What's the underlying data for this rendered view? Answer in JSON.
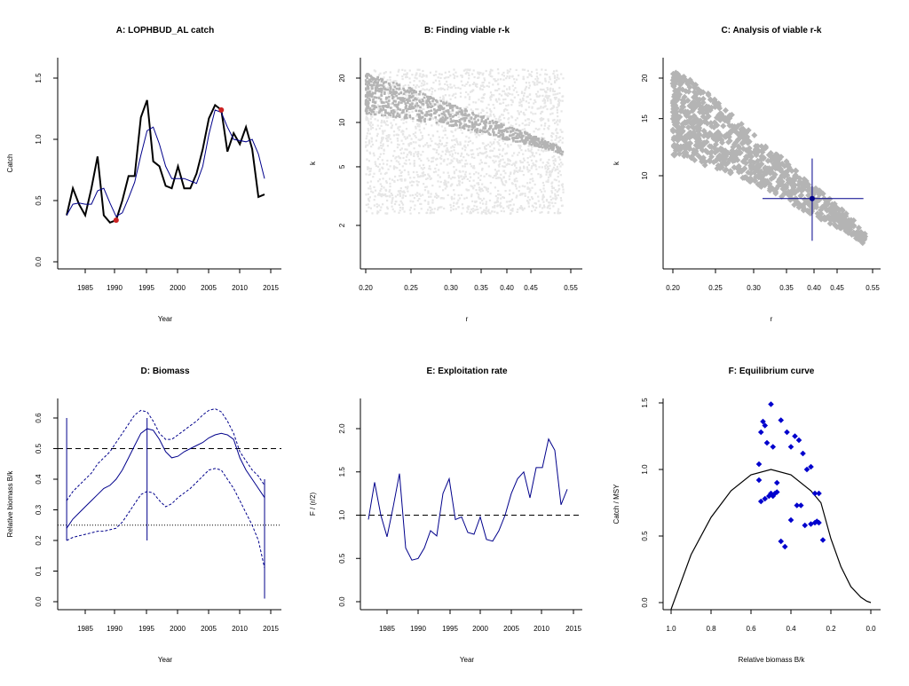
{
  "colors": {
    "blue": "#00008b",
    "point_blue": "#0000cd",
    "red": "#cc2222",
    "grey_dark": "#b4b4b4",
    "grey_light": "#e6e6e6"
  },
  "chart_data": [
    {
      "id": "A",
      "type": "line",
      "title": "A:  LOPHBUD_AL catch",
      "xlabel": "Year",
      "ylabel": "Catch",
      "xlim": [
        1982,
        2014
      ],
      "ylim": [
        0,
        1.6
      ],
      "xticks": [
        "1985",
        "1990",
        "1995",
        "2000",
        "2005",
        "2010",
        "2015"
      ],
      "yticks": [
        "0.0",
        "0.5",
        "1.0",
        "1.5"
      ],
      "x": [
        1982,
        1983,
        1984,
        1985,
        1986,
        1987,
        1988,
        1989,
        1990,
        1991,
        1992,
        1993,
        1994,
        1995,
        1996,
        1997,
        1998,
        1999,
        2000,
        2001,
        2002,
        2003,
        2004,
        2005,
        2006,
        2007,
        2008,
        2009,
        2010,
        2011,
        2012,
        2013,
        2014
      ],
      "series": [
        {
          "name": "Catch",
          "values": [
            0.38,
            0.6,
            0.47,
            0.38,
            0.6,
            0.86,
            0.38,
            0.32,
            0.34,
            0.5,
            0.7,
            0.7,
            1.18,
            1.32,
            0.82,
            0.78,
            0.62,
            0.6,
            0.78,
            0.6,
            0.6,
            0.72,
            0.92,
            1.17,
            1.28,
            1.24,
            0.9,
            1.05,
            0.96,
            1.1,
            0.92,
            0.53,
            0.55
          ]
        },
        {
          "name": "Smoothed catch",
          "values": [
            0.38,
            0.47,
            0.48,
            0.47,
            0.47,
            0.58,
            0.6,
            0.48,
            0.37,
            0.4,
            0.52,
            0.65,
            0.87,
            1.07,
            1.1,
            0.96,
            0.78,
            0.68,
            0.68,
            0.68,
            0.66,
            0.64,
            0.78,
            1.04,
            1.24,
            1.22,
            1.1,
            1.0,
            0.99,
            0.98,
            1.0,
            0.88,
            0.68
          ]
        }
      ],
      "highlight_points": [
        {
          "x": 1990,
          "y": 0.34
        },
        {
          "x": 2007,
          "y": 1.24
        }
      ]
    },
    {
      "id": "B",
      "type": "scatter",
      "title": "B: Finding viable r-k",
      "xlabel": "r",
      "ylabel": "k",
      "xscale": "log",
      "yscale": "log",
      "xlim": [
        0.2,
        0.53
      ],
      "ylim": [
        2.4,
        23
      ],
      "xticks": [
        "0.20",
        "0.25",
        "0.30",
        "0.35",
        "0.40",
        "0.45",
        "0.55"
      ],
      "yticks": [
        "2",
        "5",
        "10",
        "20"
      ],
      "background_cloud": {
        "r_range": [
          0.2,
          0.53
        ],
        "k_range": [
          2.4,
          23
        ],
        "points": 2200
      },
      "viable_band": {
        "upper_edge": [
          [
            0.2,
            21.5
          ],
          [
            0.3,
            13.5
          ],
          [
            0.4,
            9.5
          ],
          [
            0.5,
            7.3
          ],
          [
            0.53,
            6.6
          ]
        ],
        "lower_edge": [
          [
            0.2,
            11.5
          ],
          [
            0.3,
            9.5
          ],
          [
            0.4,
            7.6
          ],
          [
            0.5,
            6.5
          ],
          [
            0.53,
            6.0
          ]
        ],
        "points": 900
      }
    },
    {
      "id": "C",
      "type": "scatter",
      "title": "C: Analysis of viable r-k",
      "xlabel": "r",
      "ylabel": "k",
      "xscale": "log",
      "yscale": "log",
      "xlim": [
        0.2,
        0.53
      ],
      "ylim": [
        5.2,
        22
      ],
      "xticks": [
        "0.20",
        "0.25",
        "0.30",
        "0.35",
        "0.40",
        "0.45",
        "0.55"
      ],
      "yticks": [
        "10",
        "15",
        "20"
      ],
      "viable_band": {
        "upper_edge": [
          [
            0.2,
            21.5
          ],
          [
            0.3,
            13.5
          ],
          [
            0.4,
            9.5
          ],
          [
            0.5,
            7.3
          ],
          [
            0.53,
            6.6
          ]
        ],
        "lower_edge": [
          [
            0.2,
            11.5
          ],
          [
            0.3,
            9.5
          ],
          [
            0.4,
            7.6
          ],
          [
            0.5,
            6.5
          ],
          [
            0.53,
            6.0
          ]
        ],
        "points": 900
      },
      "best_estimate": {
        "r": 0.405,
        "k": 8.5,
        "r_ci": [
          0.315,
          0.525
        ],
        "k_ci": [
          6.3,
          11.3
        ]
      }
    },
    {
      "id": "D",
      "type": "line",
      "title": "D: Biomass",
      "xlabel": "Year",
      "ylabel": "Relative biomass B/k",
      "xlim": [
        1982,
        2014
      ],
      "ylim": [
        0,
        0.62
      ],
      "xticks": [
        "1985",
        "1990",
        "1995",
        "2000",
        "2005",
        "2010",
        "2015"
      ],
      "yticks": [
        "0.0",
        "0.1",
        "0.2",
        "0.3",
        "0.4",
        "0.5",
        "0.6"
      ],
      "x": [
        1982,
        1983,
        1984,
        1985,
        1986,
        1987,
        1988,
        1989,
        1990,
        1991,
        1992,
        1993,
        1994,
        1995,
        1996,
        1997,
        1998,
        1999,
        2000,
        2001,
        2002,
        2003,
        2004,
        2005,
        2006,
        2007,
        2008,
        2009,
        2010,
        2011,
        2012,
        2013,
        2014
      ],
      "series": [
        {
          "name": "Median",
          "style": "solid",
          "values": [
            0.24,
            0.27,
            0.29,
            0.31,
            0.33,
            0.35,
            0.37,
            0.38,
            0.4,
            0.43,
            0.47,
            0.51,
            0.55,
            0.565,
            0.56,
            0.53,
            0.49,
            0.47,
            0.475,
            0.49,
            0.5,
            0.51,
            0.52,
            0.535,
            0.545,
            0.55,
            0.545,
            0.53,
            0.47,
            0.43,
            0.4,
            0.37,
            0.34
          ]
        },
        {
          "name": "Upper",
          "style": "dotted",
          "values": [
            0.33,
            0.36,
            0.38,
            0.4,
            0.42,
            0.45,
            0.47,
            0.49,
            0.52,
            0.55,
            0.58,
            0.61,
            0.625,
            0.62,
            0.59,
            0.55,
            0.53,
            0.53,
            0.545,
            0.56,
            0.575,
            0.59,
            0.61,
            0.625,
            0.63,
            0.62,
            0.59,
            0.55,
            0.49,
            0.46,
            0.43,
            0.41,
            0.38
          ]
        },
        {
          "name": "Lower",
          "style": "dotted",
          "values": [
            0.2,
            0.21,
            0.215,
            0.22,
            0.225,
            0.23,
            0.23,
            0.235,
            0.24,
            0.26,
            0.29,
            0.32,
            0.35,
            0.36,
            0.355,
            0.33,
            0.31,
            0.32,
            0.34,
            0.355,
            0.37,
            0.39,
            0.41,
            0.43,
            0.435,
            0.43,
            0.4,
            0.37,
            0.33,
            0.29,
            0.25,
            0.2,
            0.11
          ]
        }
      ],
      "hlines": [
        {
          "y": 0.5,
          "style": "dashed"
        },
        {
          "y": 0.25,
          "style": "dotted"
        }
      ],
      "vlines": [
        {
          "x": 1982,
          "y_range": [
            0.2,
            0.6
          ]
        },
        {
          "x": 1995,
          "y_range": [
            0.2,
            0.6
          ]
        },
        {
          "x": 2014,
          "y_range": [
            0.01,
            0.4
          ]
        }
      ]
    },
    {
      "id": "E",
      "type": "line",
      "title": "E: Exploitation rate",
      "xlabel": "Year",
      "ylabel": "F / (r/2)",
      "xlim": [
        1982,
        2014
      ],
      "ylim": [
        0,
        2.3
      ],
      "xticks": [
        "1985",
        "1990",
        "1995",
        "2000",
        "2005",
        "2010",
        "2015"
      ],
      "yticks": [
        "0.0",
        "0.5",
        "1.0",
        "1.5",
        "2.0"
      ],
      "x": [
        1982,
        1983,
        1984,
        1985,
        1986,
        1987,
        1988,
        1989,
        1990,
        1991,
        1992,
        1993,
        1994,
        1995,
        1996,
        1997,
        1998,
        1999,
        2000,
        2001,
        2002,
        2003,
        2004,
        2005,
        2006,
        2007,
        2008,
        2009,
        2010,
        2011,
        2012,
        2013,
        2014
      ],
      "series": [
        {
          "name": "F / (r/2)",
          "values": [
            0.95,
            1.38,
            1.0,
            0.75,
            1.1,
            1.48,
            0.62,
            0.48,
            0.5,
            0.62,
            0.82,
            0.76,
            1.25,
            1.42,
            0.95,
            0.98,
            0.8,
            0.78,
            0.98,
            0.72,
            0.7,
            0.82,
            1.0,
            1.25,
            1.42,
            1.5,
            1.2,
            1.55,
            1.55,
            1.88,
            1.75,
            1.12,
            1.3
          ]
        }
      ],
      "hlines": [
        {
          "y": 1.0,
          "style": "dashed"
        }
      ]
    },
    {
      "id": "F",
      "type": "scatter",
      "title": "F: Equilibrium curve",
      "xlabel": "Relative biomass B/k",
      "ylabel": "Catch / MSY",
      "xlim": [
        1.0,
        0.0
      ],
      "ylim": [
        0,
        1.5
      ],
      "xticks": [
        "1.0",
        "0.8",
        "0.6",
        "0.4",
        "0.2",
        "0.0"
      ],
      "yticks": [
        "0.0",
        "0.5",
        "1.0",
        "1.5"
      ],
      "curve": {
        "x": [
          1.0,
          0.9,
          0.8,
          0.7,
          0.6,
          0.5,
          0.4,
          0.3,
          0.25,
          0.2,
          0.15,
          0.1,
          0.05,
          0.02,
          0.0
        ],
        "y": [
          -0.05,
          0.36,
          0.64,
          0.84,
          0.96,
          1.0,
          0.96,
          0.84,
          0.75,
          0.48,
          0.27,
          0.12,
          0.04,
          0.01,
          0.0
        ]
      },
      "points": {
        "x": [
          0.56,
          0.55,
          0.54,
          0.53,
          0.52,
          0.5,
          0.49,
          0.47,
          0.45,
          0.42,
          0.4,
          0.38,
          0.36,
          0.34,
          0.32,
          0.3,
          0.28,
          0.27,
          0.26,
          0.55,
          0.53,
          0.51,
          0.49,
          0.47,
          0.45,
          0.43,
          0.4,
          0.37,
          0.35,
          0.33,
          0.3,
          0.28,
          0.26,
          0.24,
          0.56,
          0.5,
          0.48
        ],
        "y": [
          1.04,
          1.28,
          1.36,
          1.33,
          1.2,
          1.49,
          1.17,
          0.9,
          1.37,
          1.28,
          1.17,
          1.25,
          1.22,
          1.12,
          1.0,
          1.02,
          0.82,
          0.61,
          0.82,
          0.76,
          0.78,
          0.8,
          0.8,
          0.83,
          0.46,
          0.42,
          0.62,
          0.73,
          0.73,
          0.58,
          0.59,
          0.6,
          0.6,
          0.47,
          0.92,
          0.82,
          0.82
        ]
      }
    }
  ]
}
